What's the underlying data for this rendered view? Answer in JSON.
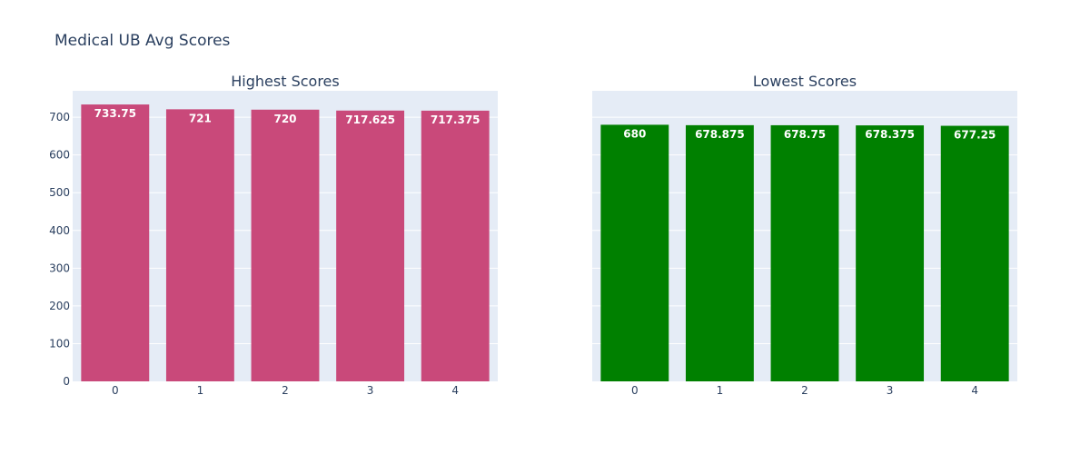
{
  "chart_title": "Medical UB Avg Scores",
  "chart_data": [
    {
      "type": "bar",
      "title": "Highest Scores",
      "categories": [
        "0",
        "1",
        "2",
        "3",
        "4"
      ],
      "values": [
        733.75,
        721,
        720,
        717.625,
        717.375
      ],
      "ylim": [
        0,
        770
      ],
      "yticks": [
        0,
        100,
        200,
        300,
        400,
        500,
        600,
        700
      ],
      "show_y_tick_labels": true,
      "color": "#c9497a",
      "plot_bg": "#e5ecf6",
      "grid": true
    },
    {
      "type": "bar",
      "title": "Lowest Scores",
      "categories": [
        "0",
        "1",
        "2",
        "3",
        "4"
      ],
      "values": [
        680,
        678.875,
        678.75,
        678.375,
        677.25
      ],
      "ylim": [
        0,
        770
      ],
      "yticks": [
        0,
        100,
        200,
        300,
        400,
        500,
        600,
        700
      ],
      "show_y_tick_labels": false,
      "color": "#008000",
      "plot_bg": "#e5ecf6",
      "grid": true
    }
  ]
}
